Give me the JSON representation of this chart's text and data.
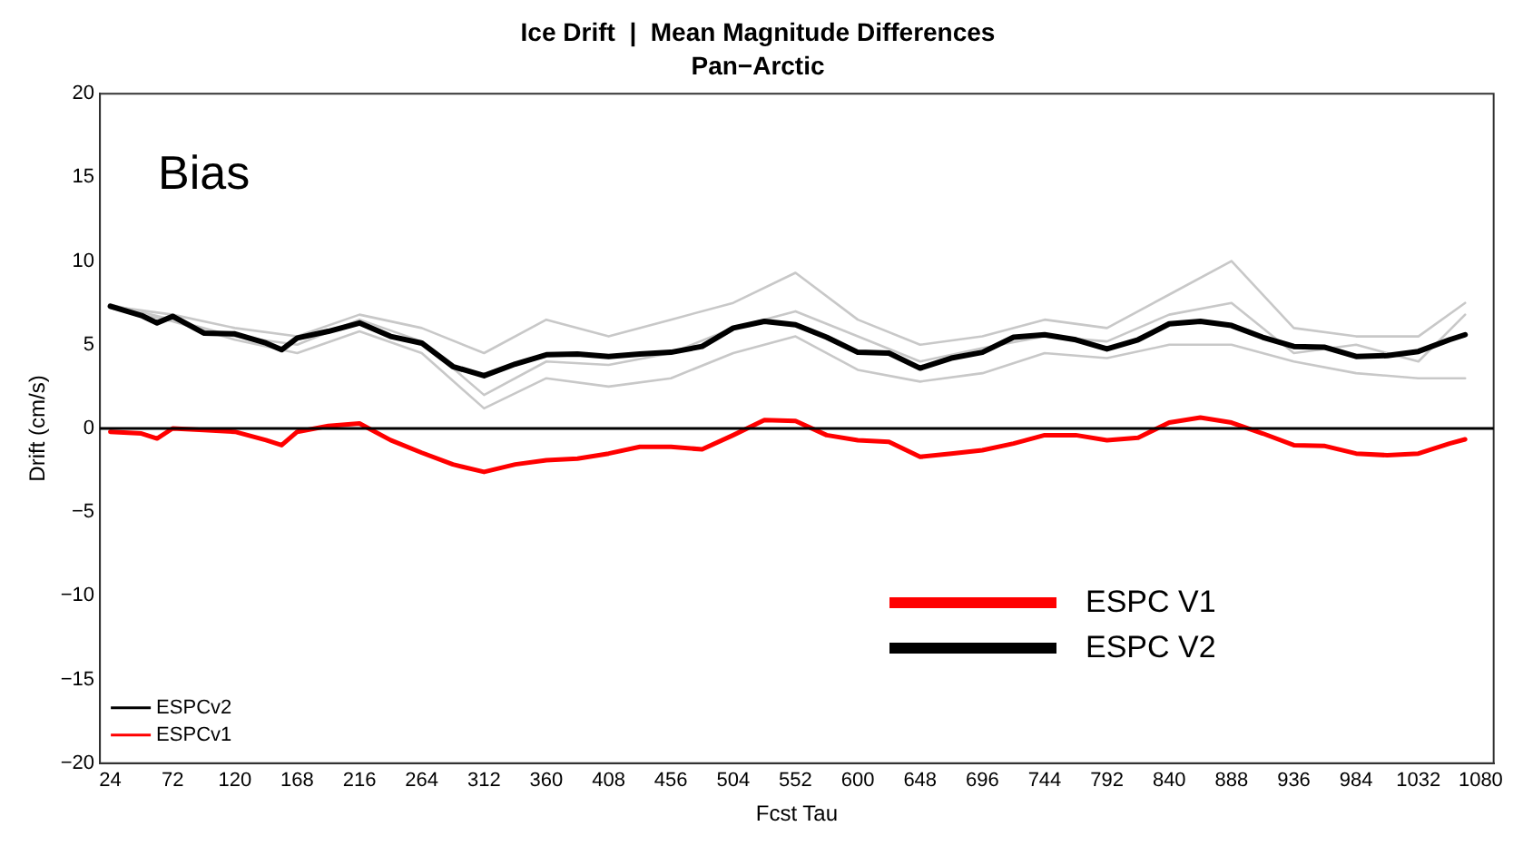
{
  "chart_data": {
    "type": "line",
    "title": "Ice Drift  |  Mean Magnitude Differences",
    "subtitle": "Pan−Arctic",
    "xlabel": "Fcst Tau",
    "ylabel": "Drift (cm/s)",
    "xlim": [
      16,
      1090
    ],
    "xticks": [
      24,
      72,
      120,
      168,
      216,
      264,
      312,
      360,
      408,
      456,
      504,
      552,
      600,
      648,
      696,
      744,
      792,
      840,
      888,
      936,
      984,
      1032,
      1080
    ],
    "ylim": [
      -20,
      20
    ],
    "yticks": [
      {
        "value": -20,
        "label": "−20"
      },
      {
        "value": -15,
        "label": "−15"
      },
      {
        "value": -10,
        "label": "−10"
      },
      {
        "value": -5,
        "label": "−5"
      },
      0,
      5,
      10,
      15,
      20
    ],
    "grid": false,
    "legend": "bottom left",
    "line_style": "solid",
    "marker": "none",
    "annotations": [
      "Bias",
      "ESPC V1",
      "ESPC V2"
    ],
    "ref_lines": [
      {
        "axis": "y",
        "value": 0,
        "color": "#000000"
      }
    ],
    "series": [
      {
        "color": "#c8c8c8",
        "x": [
          24,
          72,
          120,
          168,
          216,
          264,
          312,
          360,
          408,
          456,
          504,
          552,
          600,
          648,
          696,
          744,
          792,
          840,
          888,
          936,
          984,
          1032,
          1068
        ],
        "values": [
          7.3,
          6.8,
          6.0,
          5.5,
          6.8,
          6.0,
          4.5,
          6.5,
          5.5,
          6.5,
          7.5,
          9.3,
          6.5,
          5.0,
          5.5,
          6.5,
          6.0,
          8.0,
          10.0,
          6.0,
          5.5,
          5.5,
          7.5
        ]
      },
      {
        "color": "#c8c8c8",
        "x": [
          24,
          72,
          120,
          168,
          216,
          264,
          312,
          360,
          408,
          456,
          504,
          552,
          600,
          648,
          696,
          744,
          792,
          840,
          888,
          936,
          984,
          1032,
          1068
        ],
        "values": [
          7.2,
          6.4,
          5.3,
          4.5,
          5.8,
          4.5,
          1.2,
          3.0,
          2.5,
          3.0,
          4.5,
          5.5,
          3.5,
          2.8,
          3.3,
          4.5,
          4.2,
          5.0,
          5.0,
          4.0,
          3.3,
          3.0,
          3.0
        ]
      },
      {
        "color": "#c8c8c8",
        "x": [
          24,
          72,
          120,
          168,
          216,
          264,
          312,
          360,
          408,
          456,
          504,
          552,
          600,
          648,
          696,
          744,
          792,
          840,
          888,
          936,
          984,
          1032,
          1068
        ],
        "values": [
          7.4,
          6.5,
          5.5,
          5.0,
          6.5,
          5.2,
          2.0,
          4.0,
          3.8,
          4.5,
          6.0,
          7.0,
          5.5,
          4.0,
          4.8,
          5.5,
          5.2,
          6.8,
          7.5,
          4.5,
          5.0,
          4.0,
          6.8
        ]
      },
      {
        "name": "ESPCv2",
        "color": "#000000",
        "x": [
          24,
          48,
          60,
          72,
          96,
          120,
          144,
          156,
          168,
          192,
          216,
          240,
          264,
          288,
          312,
          336,
          360,
          384,
          408,
          432,
          456,
          480,
          504,
          528,
          552,
          576,
          600,
          624,
          648,
          672,
          696,
          720,
          744,
          768,
          792,
          816,
          840,
          864,
          888,
          912,
          936,
          960,
          984,
          1008,
          1032,
          1056,
          1068
        ],
        "values": [
          7.3,
          6.75,
          6.3,
          6.7,
          5.7,
          5.65,
          5.1,
          4.7,
          5.4,
          5.8,
          6.3,
          5.5,
          5.1,
          3.7,
          3.15,
          3.85,
          4.4,
          4.45,
          4.3,
          4.45,
          4.55,
          4.9,
          6.0,
          6.4,
          6.2,
          5.45,
          4.55,
          4.5,
          3.6,
          4.2,
          4.55,
          5.45,
          5.6,
          5.3,
          4.75,
          5.3,
          6.25,
          6.4,
          6.15,
          5.45,
          4.9,
          4.85,
          4.3,
          4.35,
          4.6,
          5.3,
          5.6
        ]
      },
      {
        "name": "ESPCv1",
        "color": "#ff0000",
        "x": [
          24,
          48,
          60,
          72,
          96,
          120,
          144,
          156,
          168,
          192,
          216,
          240,
          264,
          288,
          312,
          336,
          360,
          384,
          408,
          432,
          456,
          480,
          504,
          528,
          552,
          576,
          600,
          624,
          648,
          672,
          696,
          720,
          744,
          768,
          792,
          816,
          840,
          864,
          888,
          912,
          936,
          960,
          984,
          1008,
          1032,
          1056,
          1068
        ],
        "values": [
          -0.2,
          -0.3,
          -0.6,
          0.0,
          -0.1,
          -0.2,
          -0.7,
          -1.0,
          -0.2,
          0.15,
          0.3,
          -0.7,
          -1.45,
          -2.15,
          -2.6,
          -2.15,
          -1.9,
          -1.8,
          -1.5,
          -1.1,
          -1.1,
          -1.25,
          -0.4,
          0.5,
          0.45,
          -0.4,
          -0.7,
          -0.8,
          -1.7,
          -1.5,
          -1.3,
          -0.9,
          -0.4,
          -0.4,
          -0.7,
          -0.55,
          0.35,
          0.65,
          0.35,
          -0.3,
          -1.0,
          -1.05,
          -1.5,
          -1.6,
          -1.5,
          -0.9,
          -0.65
        ]
      }
    ]
  }
}
